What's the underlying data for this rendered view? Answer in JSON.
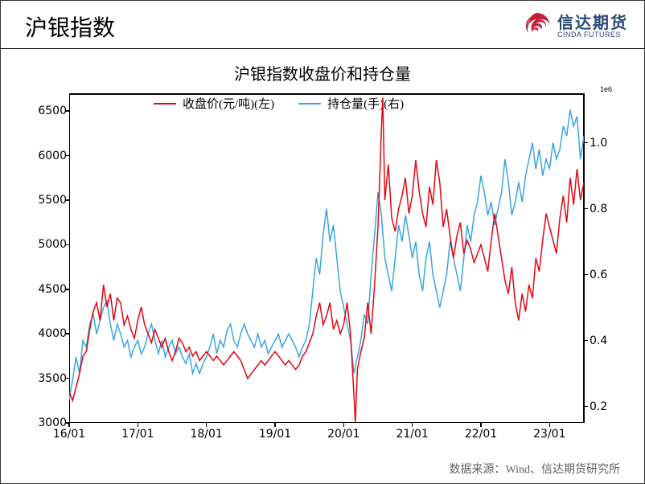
{
  "page_title": "沪银指数",
  "logo": {
    "cn": "信达期货",
    "en": "CINDA FUTURES",
    "swirl_color": "#c41e3a",
    "text_color": "#2b4a7a"
  },
  "chart": {
    "type": "line-dual-axis",
    "title": "沪银指数收盘价和持仓量",
    "title_fontsize": 20,
    "exp_label": "1e6",
    "background_color": "#ffffff",
    "border_color": "#000000",
    "legend": {
      "position": "top-inside",
      "items": [
        {
          "label": "收盘价(元/吨)(左)",
          "color": "#e30613"
        },
        {
          "label": "持仓量(手)(右)",
          "color": "#3aa5e0"
        }
      ]
    },
    "x_axis": {
      "ticks": [
        "16/01",
        "17/01",
        "18/01",
        "19/01",
        "20/01",
        "21/01",
        "22/01",
        "23/01"
      ],
      "tick_positions": [
        0,
        1,
        2,
        3,
        4,
        5,
        6,
        7
      ],
      "xlim": [
        0,
        7.5
      ],
      "fontsize": 14
    },
    "y_left": {
      "label": null,
      "ylim": [
        3000,
        6700
      ],
      "ticks": [
        3000,
        3500,
        4000,
        4500,
        5000,
        5500,
        6000,
        6500
      ],
      "color": "#000000",
      "fontsize": 14
    },
    "y_right": {
      "label": null,
      "ylim": [
        0.15,
        1.15
      ],
      "ticks": [
        0.2,
        0.4,
        0.6,
        0.8,
        1.0
      ],
      "color": "#000000",
      "fontsize": 14
    },
    "series_price": {
      "color": "#e30613",
      "line_width": 1.5,
      "data": [
        [
          0.0,
          3350
        ],
        [
          0.05,
          3250
        ],
        [
          0.1,
          3400
        ],
        [
          0.15,
          3550
        ],
        [
          0.2,
          3750
        ],
        [
          0.25,
          3800
        ],
        [
          0.3,
          4050
        ],
        [
          0.35,
          4250
        ],
        [
          0.4,
          4350
        ],
        [
          0.45,
          4150
        ],
        [
          0.5,
          4550
        ],
        [
          0.55,
          4300
        ],
        [
          0.6,
          4450
        ],
        [
          0.65,
          4150
        ],
        [
          0.7,
          4400
        ],
        [
          0.75,
          4350
        ],
        [
          0.8,
          4100
        ],
        [
          0.85,
          4200
        ],
        [
          0.9,
          4050
        ],
        [
          0.95,
          3950
        ],
        [
          1.0,
          4150
        ],
        [
          1.05,
          4300
        ],
        [
          1.1,
          4100
        ],
        [
          1.15,
          4000
        ],
        [
          1.2,
          3900
        ],
        [
          1.25,
          4050
        ],
        [
          1.3,
          3950
        ],
        [
          1.35,
          3850
        ],
        [
          1.4,
          3950
        ],
        [
          1.45,
          3800
        ],
        [
          1.5,
          3700
        ],
        [
          1.55,
          3800
        ],
        [
          1.6,
          3950
        ],
        [
          1.65,
          3900
        ],
        [
          1.7,
          3800
        ],
        [
          1.75,
          3850
        ],
        [
          1.8,
          3750
        ],
        [
          1.85,
          3800
        ],
        [
          1.9,
          3700
        ],
        [
          1.95,
          3750
        ],
        [
          2.0,
          3800
        ],
        [
          2.05,
          3750
        ],
        [
          2.1,
          3700
        ],
        [
          2.15,
          3750
        ],
        [
          2.2,
          3700
        ],
        [
          2.25,
          3650
        ],
        [
          2.3,
          3700
        ],
        [
          2.35,
          3750
        ],
        [
          2.4,
          3800
        ],
        [
          2.45,
          3750
        ],
        [
          2.5,
          3700
        ],
        [
          2.55,
          3600
        ],
        [
          2.6,
          3500
        ],
        [
          2.65,
          3550
        ],
        [
          2.7,
          3600
        ],
        [
          2.75,
          3650
        ],
        [
          2.8,
          3700
        ],
        [
          2.85,
          3650
        ],
        [
          2.9,
          3700
        ],
        [
          2.95,
          3750
        ],
        [
          3.0,
          3800
        ],
        [
          3.05,
          3750
        ],
        [
          3.1,
          3700
        ],
        [
          3.15,
          3650
        ],
        [
          3.2,
          3700
        ],
        [
          3.25,
          3650
        ],
        [
          3.3,
          3600
        ],
        [
          3.35,
          3650
        ],
        [
          3.4,
          3750
        ],
        [
          3.45,
          3800
        ],
        [
          3.5,
          3900
        ],
        [
          3.55,
          4000
        ],
        [
          3.6,
          4200
        ],
        [
          3.65,
          4350
        ],
        [
          3.7,
          4100
        ],
        [
          3.75,
          4200
        ],
        [
          3.8,
          4350
        ],
        [
          3.85,
          4050
        ],
        [
          3.9,
          4150
        ],
        [
          3.95,
          4000
        ],
        [
          4.0,
          4100
        ],
        [
          4.05,
          4350
        ],
        [
          4.1,
          4000
        ],
        [
          4.15,
          3300
        ],
        [
          4.17,
          3000
        ],
        [
          4.2,
          3600
        ],
        [
          4.25,
          3800
        ],
        [
          4.3,
          3950
        ],
        [
          4.35,
          4350
        ],
        [
          4.4,
          4000
        ],
        [
          4.45,
          4550
        ],
        [
          4.5,
          5200
        ],
        [
          4.55,
          6300
        ],
        [
          4.57,
          6650
        ],
        [
          4.6,
          5500
        ],
        [
          4.65,
          5900
        ],
        [
          4.7,
          5300
        ],
        [
          4.75,
          5150
        ],
        [
          4.8,
          5400
        ],
        [
          4.85,
          5550
        ],
        [
          4.9,
          5750
        ],
        [
          4.95,
          5350
        ],
        [
          5.0,
          5550
        ],
        [
          5.05,
          5950
        ],
        [
          5.1,
          5600
        ],
        [
          5.15,
          5350
        ],
        [
          5.2,
          5200
        ],
        [
          5.25,
          5650
        ],
        [
          5.3,
          5450
        ],
        [
          5.35,
          5950
        ],
        [
          5.4,
          5700
        ],
        [
          5.45,
          5200
        ],
        [
          5.5,
          5400
        ],
        [
          5.55,
          5100
        ],
        [
          5.6,
          4850
        ],
        [
          5.65,
          5100
        ],
        [
          5.7,
          5250
        ],
        [
          5.75,
          4900
        ],
        [
          5.8,
          5050
        ],
        [
          5.85,
          4950
        ],
        [
          5.9,
          4800
        ],
        [
          5.95,
          4900
        ],
        [
          6.0,
          5000
        ],
        [
          6.05,
          4850
        ],
        [
          6.1,
          4700
        ],
        [
          6.15,
          5050
        ],
        [
          6.2,
          5350
        ],
        [
          6.25,
          5100
        ],
        [
          6.3,
          4850
        ],
        [
          6.35,
          4600
        ],
        [
          6.4,
          4450
        ],
        [
          6.45,
          4750
        ],
        [
          6.5,
          4350
        ],
        [
          6.55,
          4150
        ],
        [
          6.6,
          4450
        ],
        [
          6.65,
          4250
        ],
        [
          6.7,
          4550
        ],
        [
          6.75,
          4400
        ],
        [
          6.8,
          4850
        ],
        [
          6.85,
          4700
        ],
        [
          6.9,
          5050
        ],
        [
          6.95,
          5350
        ],
        [
          7.0,
          5200
        ],
        [
          7.05,
          5050
        ],
        [
          7.1,
          4900
        ],
        [
          7.15,
          5300
        ],
        [
          7.2,
          5550
        ],
        [
          7.25,
          5250
        ],
        [
          7.3,
          5750
        ],
        [
          7.35,
          5450
        ],
        [
          7.4,
          5850
        ],
        [
          7.45,
          5500
        ],
        [
          7.5,
          5700
        ]
      ]
    },
    "series_oi": {
      "color": "#3aa5e0",
      "line_width": 1.5,
      "data": [
        [
          0.0,
          0.22
        ],
        [
          0.05,
          0.28
        ],
        [
          0.1,
          0.35
        ],
        [
          0.15,
          0.3
        ],
        [
          0.2,
          0.4
        ],
        [
          0.25,
          0.38
        ],
        [
          0.3,
          0.45
        ],
        [
          0.35,
          0.48
        ],
        [
          0.4,
          0.42
        ],
        [
          0.45,
          0.46
        ],
        [
          0.5,
          0.5
        ],
        [
          0.55,
          0.52
        ],
        [
          0.6,
          0.45
        ],
        [
          0.65,
          0.4
        ],
        [
          0.7,
          0.45
        ],
        [
          0.75,
          0.42
        ],
        [
          0.8,
          0.38
        ],
        [
          0.85,
          0.4
        ],
        [
          0.9,
          0.35
        ],
        [
          0.95,
          0.38
        ],
        [
          1.0,
          0.4
        ],
        [
          1.05,
          0.36
        ],
        [
          1.1,
          0.38
        ],
        [
          1.15,
          0.42
        ],
        [
          1.2,
          0.45
        ],
        [
          1.25,
          0.4
        ],
        [
          1.3,
          0.36
        ],
        [
          1.35,
          0.4
        ],
        [
          1.4,
          0.35
        ],
        [
          1.45,
          0.38
        ],
        [
          1.5,
          0.4
        ],
        [
          1.55,
          0.36
        ],
        [
          1.6,
          0.38
        ],
        [
          1.65,
          0.35
        ],
        [
          1.7,
          0.33
        ],
        [
          1.75,
          0.36
        ],
        [
          1.8,
          0.3
        ],
        [
          1.85,
          0.33
        ],
        [
          1.9,
          0.3
        ],
        [
          1.95,
          0.33
        ],
        [
          2.0,
          0.35
        ],
        [
          2.05,
          0.38
        ],
        [
          2.1,
          0.42
        ],
        [
          2.15,
          0.36
        ],
        [
          2.2,
          0.4
        ],
        [
          2.25,
          0.38
        ],
        [
          2.3,
          0.43
        ],
        [
          2.35,
          0.45
        ],
        [
          2.4,
          0.4
        ],
        [
          2.45,
          0.38
        ],
        [
          2.5,
          0.42
        ],
        [
          2.55,
          0.45
        ],
        [
          2.6,
          0.42
        ],
        [
          2.65,
          0.4
        ],
        [
          2.7,
          0.38
        ],
        [
          2.75,
          0.42
        ],
        [
          2.8,
          0.38
        ],
        [
          2.85,
          0.4
        ],
        [
          2.9,
          0.36
        ],
        [
          2.95,
          0.38
        ],
        [
          3.0,
          0.4
        ],
        [
          3.05,
          0.42
        ],
        [
          3.1,
          0.38
        ],
        [
          3.15,
          0.4
        ],
        [
          3.2,
          0.42
        ],
        [
          3.25,
          0.4
        ],
        [
          3.3,
          0.38
        ],
        [
          3.35,
          0.35
        ],
        [
          3.4,
          0.38
        ],
        [
          3.45,
          0.4
        ],
        [
          3.5,
          0.45
        ],
        [
          3.55,
          0.55
        ],
        [
          3.6,
          0.65
        ],
        [
          3.65,
          0.6
        ],
        [
          3.7,
          0.72
        ],
        [
          3.75,
          0.8
        ],
        [
          3.8,
          0.7
        ],
        [
          3.85,
          0.75
        ],
        [
          3.9,
          0.65
        ],
        [
          3.95,
          0.55
        ],
        [
          4.0,
          0.5
        ],
        [
          4.05,
          0.45
        ],
        [
          4.1,
          0.4
        ],
        [
          4.15,
          0.3
        ],
        [
          4.2,
          0.35
        ],
        [
          4.25,
          0.4
        ],
        [
          4.3,
          0.48
        ],
        [
          4.35,
          0.45
        ],
        [
          4.4,
          0.6
        ],
        [
          4.45,
          0.72
        ],
        [
          4.5,
          0.85
        ],
        [
          4.55,
          0.78
        ],
        [
          4.6,
          0.65
        ],
        [
          4.65,
          0.6
        ],
        [
          4.7,
          0.55
        ],
        [
          4.75,
          0.65
        ],
        [
          4.8,
          0.75
        ],
        [
          4.85,
          0.7
        ],
        [
          4.9,
          0.78
        ],
        [
          4.95,
          0.72
        ],
        [
          5.0,
          0.65
        ],
        [
          5.05,
          0.7
        ],
        [
          5.1,
          0.6
        ],
        [
          5.15,
          0.55
        ],
        [
          5.2,
          0.65
        ],
        [
          5.25,
          0.7
        ],
        [
          5.3,
          0.6
        ],
        [
          5.35,
          0.55
        ],
        [
          5.4,
          0.5
        ],
        [
          5.45,
          0.55
        ],
        [
          5.5,
          0.6
        ],
        [
          5.55,
          0.7
        ],
        [
          5.6,
          0.65
        ],
        [
          5.65,
          0.6
        ],
        [
          5.7,
          0.55
        ],
        [
          5.75,
          0.65
        ],
        [
          5.8,
          0.75
        ],
        [
          5.85,
          0.7
        ],
        [
          5.9,
          0.78
        ],
        [
          5.95,
          0.82
        ],
        [
          6.0,
          0.9
        ],
        [
          6.05,
          0.85
        ],
        [
          6.1,
          0.78
        ],
        [
          6.15,
          0.82
        ],
        [
          6.2,
          0.75
        ],
        [
          6.25,
          0.8
        ],
        [
          6.3,
          0.85
        ],
        [
          6.35,
          0.95
        ],
        [
          6.4,
          0.88
        ],
        [
          6.45,
          0.78
        ],
        [
          6.5,
          0.82
        ],
        [
          6.55,
          0.88
        ],
        [
          6.6,
          0.82
        ],
        [
          6.65,
          0.9
        ],
        [
          6.7,
          0.95
        ],
        [
          6.75,
          1.0
        ],
        [
          6.8,
          0.92
        ],
        [
          6.85,
          0.98
        ],
        [
          6.9,
          0.9
        ],
        [
          6.95,
          0.95
        ],
        [
          7.0,
          0.92
        ],
        [
          7.05,
          1.0
        ],
        [
          7.1,
          0.95
        ],
        [
          7.15,
          0.98
        ],
        [
          7.2,
          1.05
        ],
        [
          7.25,
          1.02
        ],
        [
          7.3,
          1.1
        ],
        [
          7.35,
          1.05
        ],
        [
          7.4,
          1.08
        ],
        [
          7.45,
          0.95
        ],
        [
          7.5,
          1.02
        ]
      ]
    }
  },
  "source": "数据来源：Wind、信达期货研究所"
}
